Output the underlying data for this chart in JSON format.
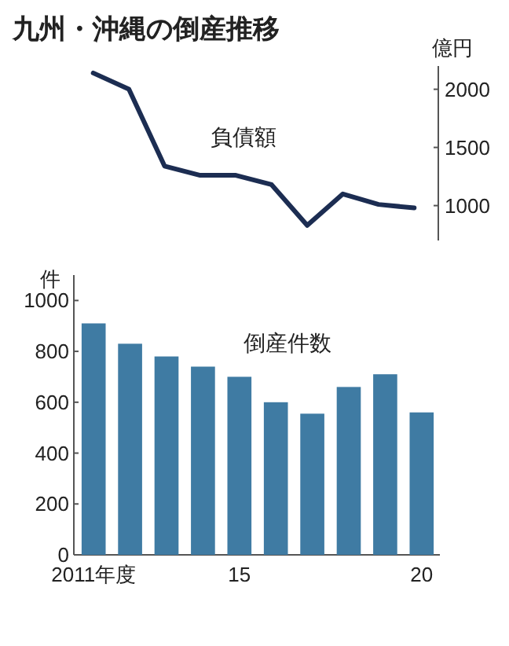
{
  "chart_data": [
    {
      "type": "line",
      "title": "九州・沖縄の倒産推移",
      "ylabel": "億円",
      "categories": [
        null,
        null,
        null,
        null,
        null,
        null,
        null,
        null,
        null,
        null
      ],
      "series": [
        {
          "name": "負債額",
          "color": "#1c2d52",
          "values": [
            2140,
            2000,
            1340,
            1260,
            1260,
            1180,
            830,
            1100,
            1010,
            980
          ]
        }
      ],
      "ylim": [
        700,
        2200
      ],
      "yticks": [
        1000,
        1500,
        2000
      ]
    },
    {
      "type": "bar",
      "ylabel": "件",
      "categories": [
        "2011年度",
        null,
        null,
        null,
        "15",
        null,
        null,
        null,
        null,
        "20"
      ],
      "series": [
        {
          "name": "倒産件数",
          "color": "#3f7ba3",
          "values": [
            910,
            830,
            780,
            740,
            700,
            600,
            555,
            660,
            710,
            560
          ]
        }
      ],
      "ylim": [
        0,
        1100
      ],
      "yticks": [
        0,
        200,
        400,
        600,
        800,
        1000
      ]
    }
  ]
}
